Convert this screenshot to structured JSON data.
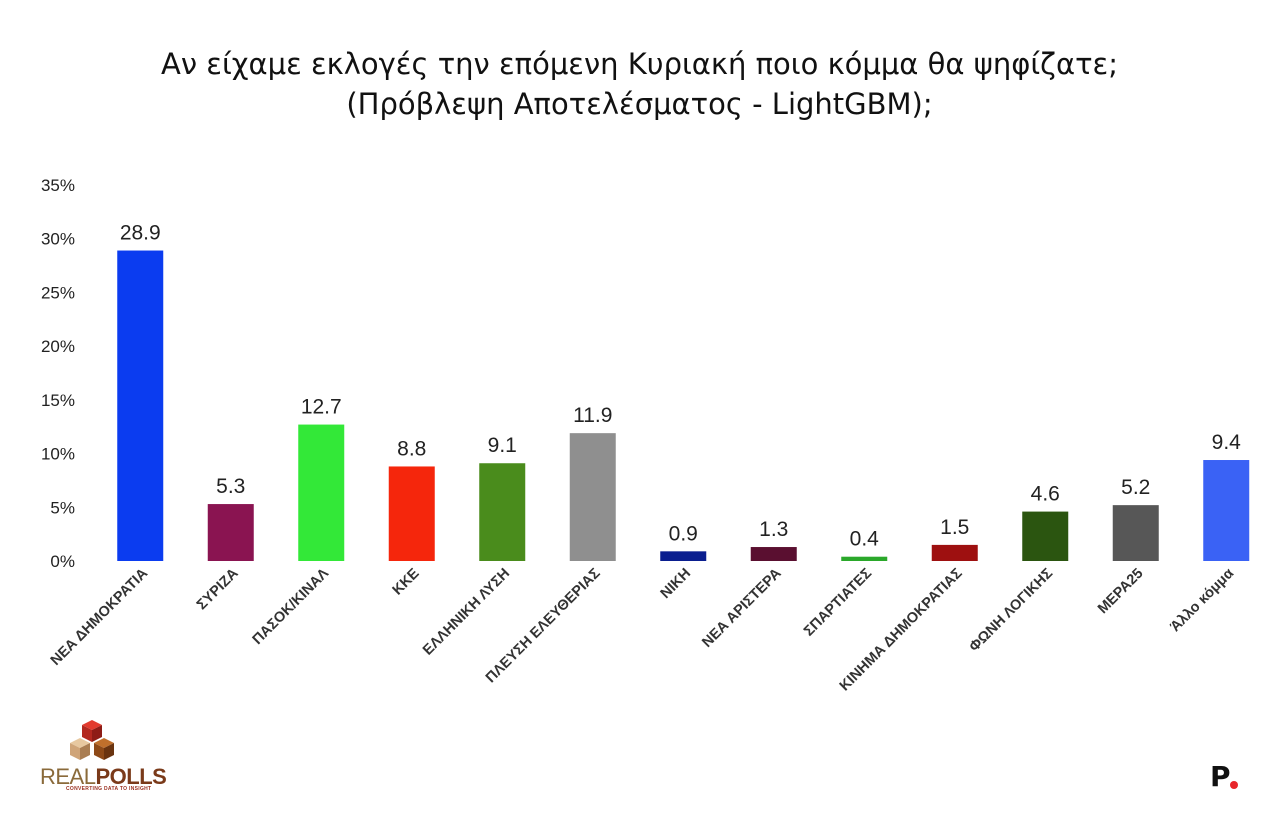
{
  "title_line1": "Αν είχαμε εκλογές την επόμενη Κυριακή ποιο κόμμα θα ψηφίζατε;",
  "title_line2": "(Πρόβλεψη Αποτελέσματος - LightGBM);",
  "logo": {
    "real": "REAL",
    "polls": "POLLS",
    "tagline": "CONVERTING DATA TO INSIGHT",
    "publisher_mark": "P",
    "publisher_dot_color": "#e8262b"
  },
  "chart_data": {
    "type": "bar",
    "title": "Αν είχαμε εκλογές την επόμενη Κυριακή ποιο κόμμα θα ψηφίζατε; (Πρόβλεψη Αποτελέσματος - LightGBM);",
    "xlabel": "",
    "ylabel": "",
    "ylim": [
      0,
      35
    ],
    "yticks": [
      0,
      5,
      10,
      15,
      20,
      25,
      30,
      35
    ],
    "ytick_labels": [
      "0%",
      "5%",
      "10%",
      "15%",
      "20%",
      "25%",
      "30%",
      "35%"
    ],
    "grid": false,
    "legend": "none",
    "categories": [
      "ΝΕΑ ΔΗΜΟΚΡΑΤΙΑ",
      "ΣΥΡΙΖΑ",
      "ΠΑΣΟΚ/ΚΙΝΑΛ",
      "ΚΚΕ",
      "ΕΛΛΗΝΙΚΗ ΛΥΣΗ",
      "ΠΛΕΥΣΗ ΕΛΕΥΘΕΡΙΑΣ",
      "ΝΙΚΗ",
      "ΝΕΑ ΑΡΙΣΤΕΡΑ",
      "ΣΠΑΡΤΙΑΤΕΣ",
      "ΚΙΝΗΜΑ ΔΗΜΟΚΡΑΤΙΑΣ",
      "ΦΩΝΗ ΛΟΓΙΚΗΣ",
      "ΜΕΡΑ25",
      "Άλλο κόμμα"
    ],
    "values": [
      28.9,
      5.3,
      12.7,
      8.8,
      9.1,
      11.9,
      0.9,
      1.3,
      0.4,
      1.5,
      4.6,
      5.2,
      9.4
    ],
    "value_labels": [
      "28.9",
      "5.3",
      "12.7",
      "8.8",
      "9.1",
      "11.9",
      "0.9",
      "1.3",
      "0.4",
      "1.5",
      "4.6",
      "5.2",
      "9.4"
    ],
    "colors": [
      "#0b3cf0",
      "#8a1451",
      "#33e838",
      "#f5260c",
      "#4a8c1c",
      "#8f8f8f",
      "#0a1e8f",
      "#5a0f30",
      "#2aa82a",
      "#9e1010",
      "#2b5510",
      "#575757",
      "#3a62f5"
    ]
  }
}
